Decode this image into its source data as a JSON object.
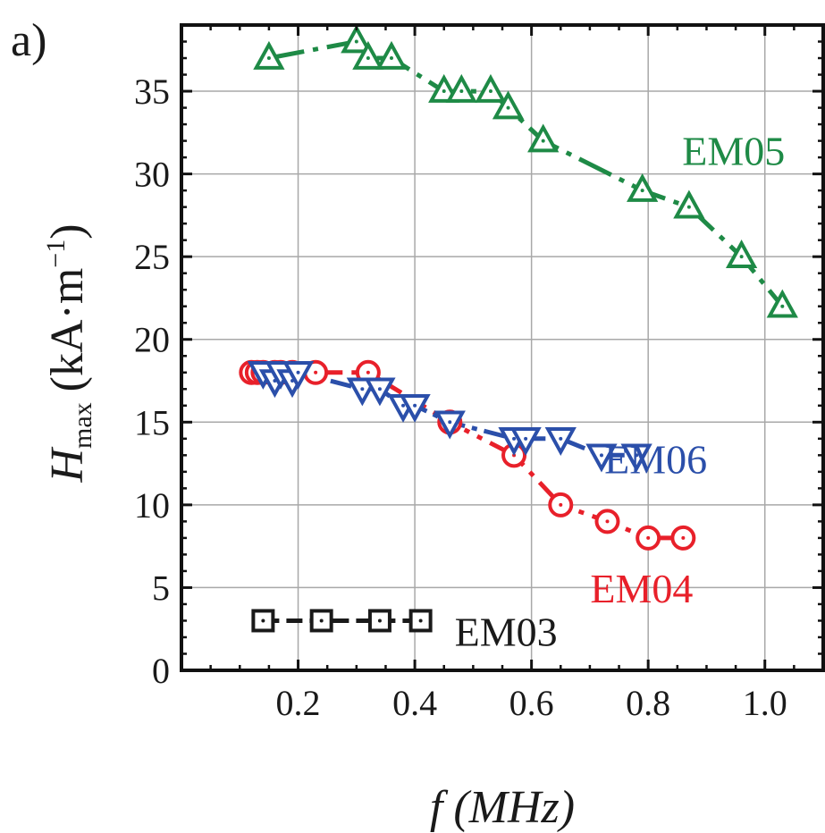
{
  "panel_label": "a)",
  "chart_data": {
    "type": "scatter",
    "xlabel": "f (MHz)",
    "xlabel_parts": {
      "var": "f",
      "unit": "(MHz)"
    },
    "ylabel": "H_max (kA·m^-1)",
    "ylabel_parts": {
      "var": "H",
      "sub": "max",
      "unit_pre": "(kA·m",
      "sup": "−1",
      "unit_post": ")"
    },
    "xlim": [
      0.0,
      1.1
    ],
    "ylim": [
      0,
      39
    ],
    "xticks": [
      {
        "value": 0.2,
        "label": "0.2"
      },
      {
        "value": 0.4,
        "label": "0.4"
      },
      {
        "value": 0.6,
        "label": "0.6"
      },
      {
        "value": 0.8,
        "label": "0.8"
      },
      {
        "value": 1.0,
        "label": "1.0"
      }
    ],
    "yticks": [
      {
        "value": 0,
        "label": "0"
      },
      {
        "value": 5,
        "label": "5"
      },
      {
        "value": 10,
        "label": "10"
      },
      {
        "value": 15,
        "label": "15"
      },
      {
        "value": 20,
        "label": "20"
      },
      {
        "value": 25,
        "label": "25"
      },
      {
        "value": 30,
        "label": "30"
      },
      {
        "value": 35,
        "label": "35"
      }
    ],
    "grid": true,
    "series": [
      {
        "name": "EM05",
        "color": "#1e8a46",
        "marker": "triangle-up",
        "x": [
          0.15,
          0.3,
          0.32,
          0.36,
          0.45,
          0.48,
          0.53,
          0.56,
          0.62,
          0.79,
          0.87,
          0.96,
          1.03
        ],
        "y": [
          37,
          38,
          37,
          37,
          35,
          35,
          35,
          34,
          32,
          29,
          28,
          25,
          22
        ]
      },
      {
        "name": "EM04",
        "color": "#e8202a",
        "marker": "circle",
        "x": [
          0.12,
          0.13,
          0.14,
          0.16,
          0.17,
          0.19,
          0.23,
          0.32,
          0.46,
          0.57,
          0.65,
          0.73,
          0.8,
          0.86
        ],
        "y": [
          18,
          18,
          18,
          18,
          18,
          18,
          18,
          18,
          15,
          13,
          10,
          9,
          8,
          8
        ]
      },
      {
        "name": "EM06",
        "color": "#2b4faa",
        "marker": "triangle-down",
        "x": [
          0.14,
          0.16,
          0.17,
          0.19,
          0.2,
          0.31,
          0.34,
          0.38,
          0.4,
          0.46,
          0.57,
          0.59,
          0.65,
          0.72,
          0.78
        ],
        "y": [
          18,
          17.5,
          18,
          17.5,
          18,
          17,
          17,
          16,
          16,
          15,
          14,
          14,
          14,
          13,
          13
        ]
      },
      {
        "name": "EM03",
        "color": "#1a1a1a",
        "marker": "square",
        "x": [
          0.14,
          0.24,
          0.34,
          0.41
        ],
        "y": [
          3,
          3,
          3,
          3
        ]
      }
    ],
    "series_label_positions": [
      "right",
      "right",
      "right",
      "right"
    ]
  }
}
